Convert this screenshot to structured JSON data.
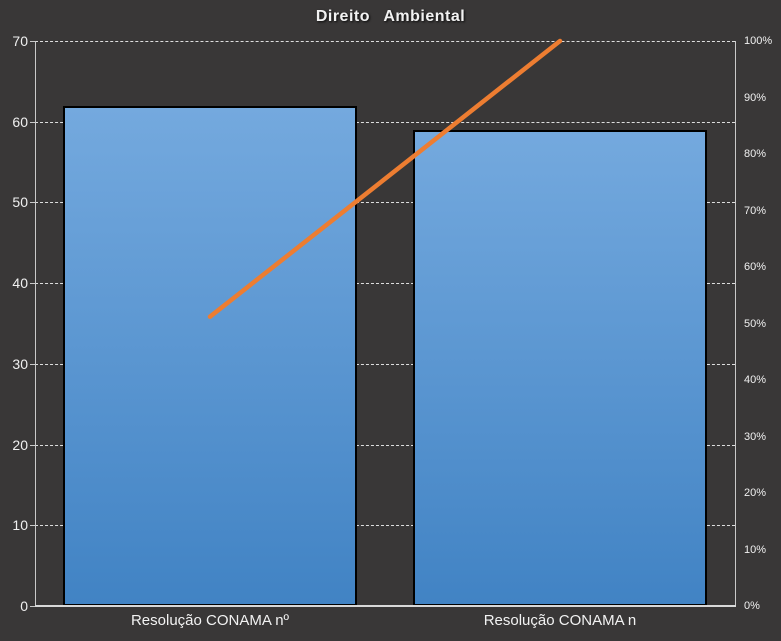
{
  "chart_data": {
    "type": "bar",
    "subtype": "pareto-combo-bar-line",
    "title": "Direito Ambiental",
    "categories": [
      "Resolução CONAMA nº",
      "Resolução CONAMA n"
    ],
    "series": [
      {
        "name": "bar-series",
        "type": "bar",
        "axis": "left",
        "values": [
          62,
          59
        ]
      },
      {
        "name": "cumulative-percent-line",
        "type": "line",
        "axis": "right",
        "values": [
          51.2,
          100
        ]
      }
    ],
    "left_axis": {
      "min": 0,
      "max": 70,
      "step": 10,
      "tick_labels": [
        "0",
        "10",
        "20",
        "30",
        "40",
        "50",
        "60",
        "70"
      ]
    },
    "right_axis": {
      "min": 0,
      "max": 100,
      "step": 10,
      "tick_labels": [
        "0%",
        "10%",
        "20%",
        "30%",
        "40%",
        "50%",
        "60%",
        "70%",
        "80%",
        "90%",
        "100%"
      ]
    },
    "legend": "none",
    "grid": "horizontal-dashed",
    "colors": {
      "background": "#393737",
      "bar_gradient_top": "#74a9de",
      "bar_gradient_bottom": "#4183c4",
      "bar_border": "#000000",
      "line": "#ed7d31",
      "axis_line": "#c9c9c9",
      "gridline": "#dedede",
      "text": "#f2f2f2"
    }
  }
}
